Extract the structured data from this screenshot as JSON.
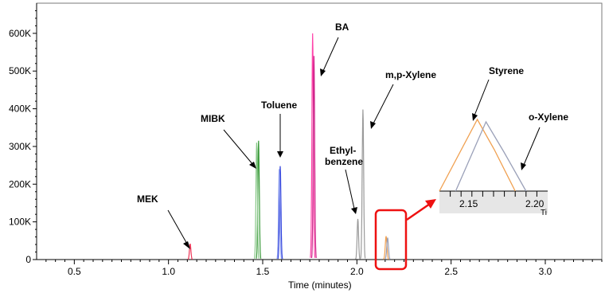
{
  "chart_data": {
    "type": "line",
    "xlabel": "Time (minutes)",
    "ylabel": "",
    "xlim": [
      0.3,
      3.3
    ],
    "ylim": [
      0,
      680000
    ],
    "x_ticks": [
      {
        "value": 0.5,
        "label": "0.5"
      },
      {
        "value": 1.0,
        "label": "1.0"
      },
      {
        "value": 1.5,
        "label": "1.5"
      },
      {
        "value": 2.0,
        "label": "2.0"
      },
      {
        "value": 2.5,
        "label": "2.5"
      },
      {
        "value": 3.0,
        "label": "3.0"
      }
    ],
    "y_ticks": [
      {
        "value": 0,
        "label": "0"
      },
      {
        "value": 100000,
        "label": "100K"
      },
      {
        "value": 200000,
        "label": "200K"
      },
      {
        "value": 300000,
        "label": "300K"
      },
      {
        "value": 400000,
        "label": "400K"
      },
      {
        "value": 500000,
        "label": "500K"
      },
      {
        "value": 600000,
        "label": "600K"
      }
    ],
    "peaks": [
      {
        "label": "MEK",
        "time": 1.115,
        "height": 42000,
        "width": 0.012,
        "color": "#ee3355"
      },
      {
        "label": "MIBK",
        "time": 1.478,
        "height": 315000,
        "width": 0.012,
        "color": "#3a9a3a"
      },
      {
        "label": "MIBK",
        "time": 1.468,
        "height": 310000,
        "width": 0.012,
        "color": "#88c888"
      },
      {
        "label": "Toluene",
        "time": 1.593,
        "height": 248000,
        "width": 0.012,
        "color": "#3344dd"
      },
      {
        "label": "Toluene",
        "time": 1.588,
        "height": 240000,
        "width": 0.012,
        "color": "#8899ee"
      },
      {
        "label": "BA",
        "time": 1.765,
        "height": 600000,
        "width": 0.012,
        "color": "#ff44aa"
      },
      {
        "label": "BA",
        "time": 1.772,
        "height": 540000,
        "width": 0.012,
        "color": "#cc2288"
      },
      {
        "label": "Ethyl-benzene",
        "time": 2.005,
        "height": 108000,
        "width": 0.012,
        "color": "#9a9a9a"
      },
      {
        "label": "m,p-Xylene",
        "time": 2.032,
        "height": 398000,
        "width": 0.012,
        "color": "#9a9a9a"
      },
      {
        "label": "Styrene",
        "time": 2.155,
        "height": 62000,
        "width": 0.014,
        "color": "#f0a050"
      },
      {
        "label": "o-Xylene",
        "time": 2.163,
        "height": 58000,
        "width": 0.014,
        "color": "#9aa0b8"
      }
    ],
    "annotations": [
      {
        "label": "MEK"
      },
      {
        "label": "MIBK"
      },
      {
        "label": "Toluene"
      },
      {
        "label": "BA"
      },
      {
        "label": "m,p-Xylene"
      },
      {
        "label": "Ethyl-"
      },
      {
        "label": "benzene"
      },
      {
        "label": "Styrene"
      },
      {
        "label": "o-Xylene"
      }
    ],
    "inset": {
      "x_ticks": [
        {
          "value": 2.15,
          "label": "2.15"
        },
        {
          "value": 2.2,
          "label": "2.20"
        }
      ],
      "axis_fragment": "Ti",
      "series": [
        {
          "color": "#f0a050",
          "x": [
            2.12,
            2.155,
            2.19
          ]
        },
        {
          "color": "#9aa0b8",
          "x": [
            2.135,
            2.163,
            2.2
          ]
        }
      ]
    },
    "highlight_color": "#ee1111"
  }
}
